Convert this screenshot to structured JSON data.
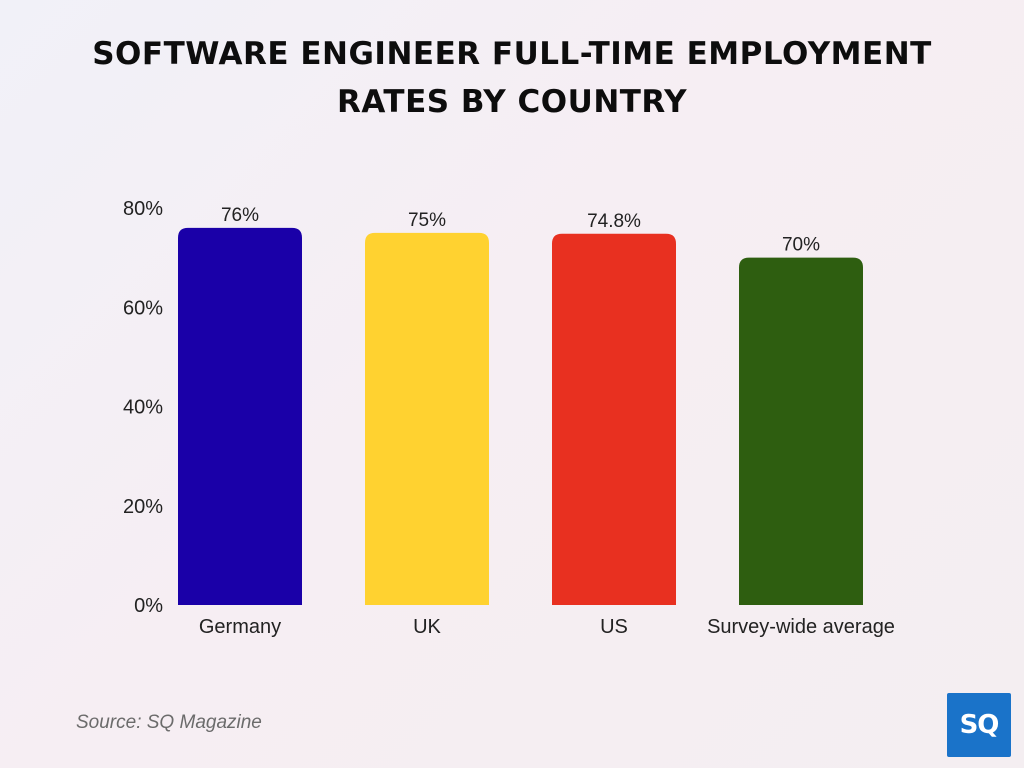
{
  "chart_data": {
    "type": "bar",
    "title_lines": [
      "SOFTWARE ENGINEER FULL-TIME EMPLOYMENT",
      "RATES BY COUNTRY"
    ],
    "categories": [
      "Germany",
      "UK",
      "US",
      "Survey-wide average"
    ],
    "values": [
      76,
      75,
      74.8,
      70
    ],
    "value_labels": [
      "76%",
      "75%",
      "74.8%",
      "70%"
    ],
    "colors": [
      "#1a00a8",
      "#ffd230",
      "#e83020",
      "#2e5e10"
    ],
    "ylim": [
      0,
      80
    ],
    "yticks": [
      0,
      20,
      40,
      60,
      80
    ],
    "ytick_labels": [
      "0%",
      "20%",
      "40%",
      "60%",
      "80%"
    ],
    "grid": false,
    "legend": "none"
  },
  "source": "Source: SQ Magazine",
  "logo": {
    "text": "SQ",
    "color": "#1a73c9"
  }
}
